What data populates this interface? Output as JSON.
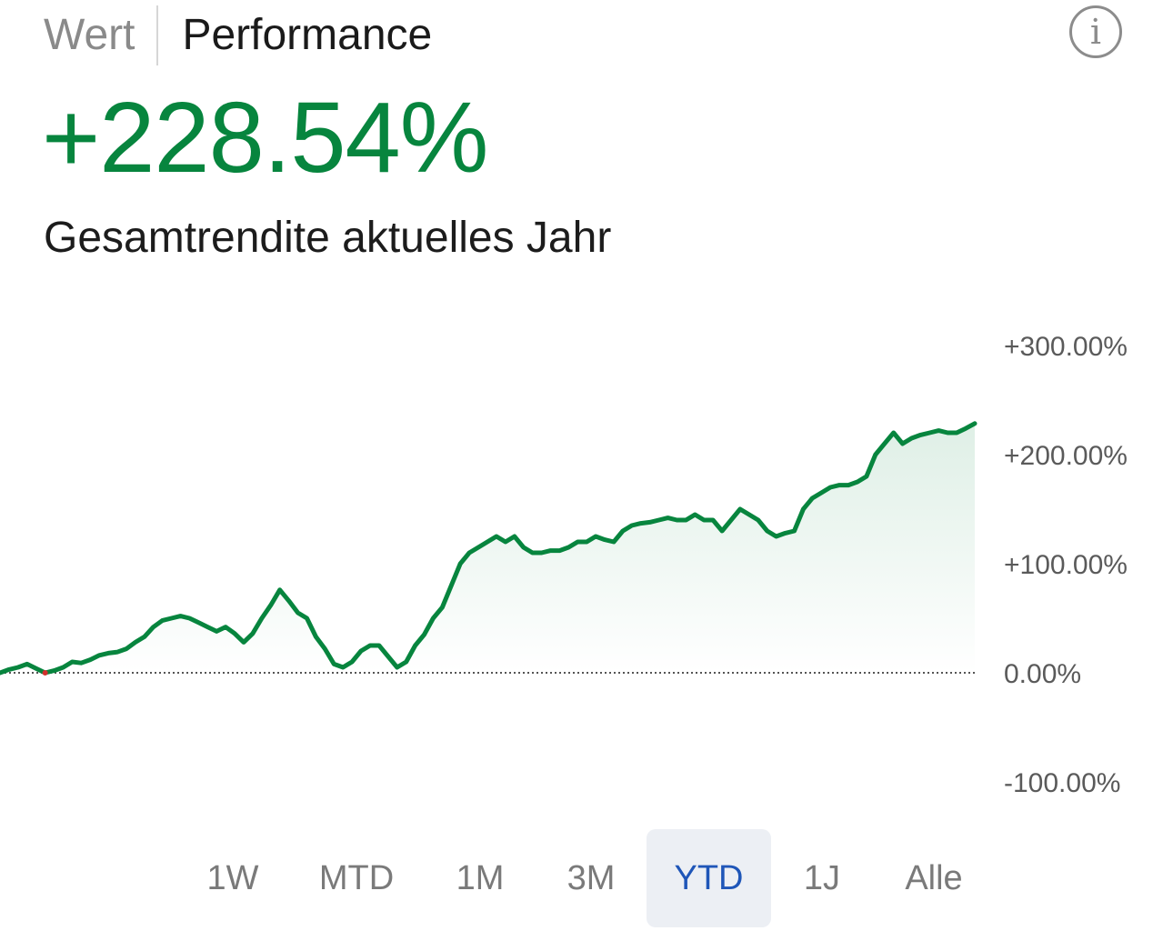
{
  "tabs": {
    "wert": "Wert",
    "performance": "Performance",
    "active": "performance"
  },
  "info_icon": "info-icon",
  "headline": {
    "value": "+228.54%",
    "label": "Gesamtrendite aktuelles Jahr"
  },
  "colors": {
    "positive": "#07853e",
    "baseline_marker": "#d0312d",
    "active_range_text": "#1f56b8",
    "active_range_bg": "#eceff4"
  },
  "chart_data": {
    "type": "area",
    "title": "",
    "xlabel": "",
    "ylabel": "",
    "ylim": [
      -100,
      300
    ],
    "y_ticks": [
      "+300.00%",
      "+200.00%",
      "+100.00%",
      "0.00%",
      "-100.00%"
    ],
    "y_tick_values": [
      300,
      200,
      100,
      0,
      -100
    ],
    "baseline": 0,
    "grid": false,
    "series": [
      {
        "values": [
          0,
          3,
          5,
          8,
          4,
          0,
          2,
          5,
          10,
          9,
          12,
          16,
          18,
          19,
          22,
          28,
          33,
          42,
          48,
          50,
          52,
          50,
          46,
          42,
          38,
          42,
          36,
          28,
          36,
          50,
          62,
          76,
          66,
          55,
          50,
          33,
          22,
          8,
          5,
          10,
          20,
          25,
          25,
          15,
          5,
          10,
          25,
          35,
          50,
          60,
          80,
          100,
          110,
          115,
          120,
          125,
          120,
          125,
          115,
          110,
          110,
          112,
          112,
          115,
          120,
          120,
          125,
          122,
          120,
          130,
          135,
          137,
          138,
          140,
          142,
          140,
          140,
          145,
          140,
          140,
          130,
          140,
          150,
          145,
          140,
          130,
          125,
          128,
          130,
          150,
          160,
          165,
          170,
          172,
          172,
          175,
          180,
          200,
          210,
          220,
          210,
          215,
          218,
          220,
          222,
          220,
          220,
          224,
          228.54
        ]
      }
    ]
  },
  "ranges": {
    "active": "YTD",
    "items": [
      {
        "label": "1W"
      },
      {
        "label": "MTD"
      },
      {
        "label": "1M"
      },
      {
        "label": "3M"
      },
      {
        "label": "YTD"
      },
      {
        "label": "1J"
      },
      {
        "label": "Alle"
      }
    ]
  }
}
